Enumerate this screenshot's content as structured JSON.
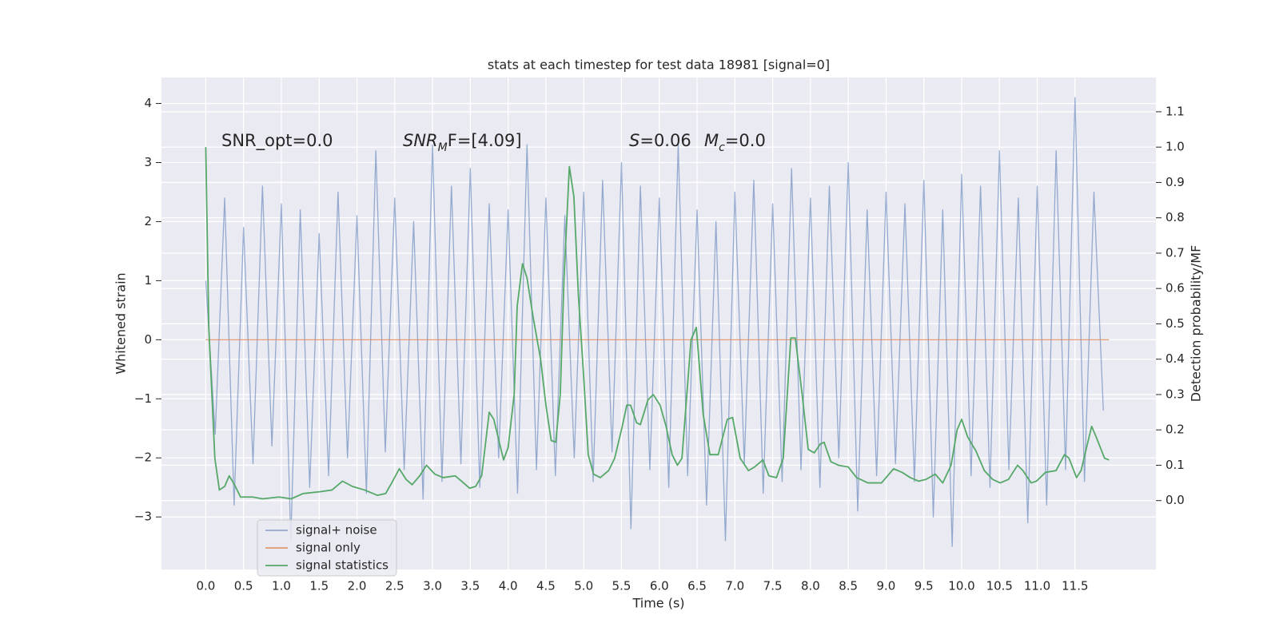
{
  "chart_data": {
    "type": "line",
    "title": "stats at each timestep for test data 18981 [signal=0]",
    "x_label": "Time (s)",
    "y_label": "Whitened strain",
    "y2_label": "Detection probability/MF",
    "annotations": [
      [
        {
          "text": "SNR_opt=0.0",
          "style": "normal"
        }
      ],
      [
        {
          "text": "SNR",
          "style": "italic"
        },
        {
          "text": "M",
          "style": "sub"
        },
        {
          "text": "F=[4.09]",
          "style": "normal"
        }
      ],
      [
        {
          "text": "S",
          "style": "italic"
        },
        {
          "text": "=0.06",
          "style": "normal"
        }
      ],
      [
        {
          "text": "M",
          "style": "italic"
        },
        {
          "text": "c",
          "style": "sub"
        },
        {
          "text": "=0.0",
          "style": "normal"
        }
      ]
    ],
    "xlim": [
      -0.586,
      12.57
    ],
    "ylim": [
      -3.89,
      4.44
    ],
    "y2lim": [
      -0.195,
      1.197
    ],
    "xticks": [
      {
        "value": 0,
        "label": "0.0"
      },
      0.5,
      {
        "value": 1,
        "label": "1.0"
      },
      1.5,
      {
        "value": 2,
        "label": "2.0"
      },
      2.5,
      {
        "value": 3,
        "label": "3.0"
      },
      3.5,
      {
        "value": 4,
        "label": "4.0"
      },
      4.5,
      {
        "value": 5,
        "label": "5.0"
      },
      5.5,
      {
        "value": 6,
        "label": "6.0"
      },
      6.5,
      {
        "value": 7,
        "label": "7.0"
      },
      7.5,
      {
        "value": 8,
        "label": "8.0"
      },
      8.5,
      {
        "value": 9,
        "label": "9.0"
      },
      9.5,
      {
        "value": 10,
        "label": "10.0"
      },
      10.5,
      {
        "value": 11,
        "label": "11.0"
      },
      11.5
    ],
    "yticks": [
      4,
      3,
      2,
      1,
      0,
      {
        "value": -1,
        "label": "−1"
      },
      {
        "value": -2,
        "label": "−2"
      },
      {
        "value": -3,
        "label": "−3"
      }
    ],
    "y2ticks": [
      {
        "value": 0,
        "label": "0.0"
      },
      0.1,
      0.2,
      0.3,
      0.4,
      0.5,
      0.6,
      0.7,
      0.8,
      0.9,
      {
        "value": 1,
        "label": "1.0"
      },
      1.1
    ],
    "grid": true,
    "legend": "lower left",
    "series": [
      {
        "name": "signal+ noise",
        "color": "#4c72b0",
        "opacity": 0.55,
        "axis": "y",
        "x": [
          0,
          0.125,
          0.25,
          0.375,
          0.5,
          0.625,
          0.75,
          0.875,
          1,
          1.125,
          1.25,
          1.375,
          1.5,
          1.625,
          1.75,
          1.875,
          2,
          2.125,
          2.25,
          2.375,
          2.5,
          2.625,
          2.75,
          2.875,
          3,
          3.125,
          3.25,
          3.375,
          3.5,
          3.625,
          3.75,
          3.875,
          4,
          4.125,
          4.25,
          4.375,
          4.5,
          4.625,
          4.75,
          4.875,
          5,
          5.125,
          5.25,
          5.375,
          5.5,
          5.625,
          5.75,
          5.875,
          6,
          6.125,
          6.25,
          6.375,
          6.5,
          6.625,
          6.75,
          6.875,
          7,
          7.125,
          7.25,
          7.375,
          7.5,
          7.625,
          7.75,
          7.875,
          8,
          8.125,
          8.25,
          8.375,
          8.5,
          8.625,
          8.75,
          8.875,
          9,
          9.125,
          9.25,
          9.375,
          9.5,
          9.625,
          9.75,
          9.875,
          10,
          10.125,
          10.25,
          10.375,
          10.5,
          10.625,
          10.75,
          10.875,
          11,
          11.125,
          11.25,
          11.375,
          11.5,
          11.625,
          11.75,
          11.875
        ],
        "values": [
          1.0,
          -1.6,
          2.4,
          -2.8,
          1.9,
          -2.1,
          2.6,
          -1.8,
          2.3,
          -3.4,
          2.2,
          -2.5,
          1.8,
          -2.3,
          2.5,
          -2.0,
          2.1,
          -2.6,
          3.2,
          -1.9,
          2.4,
          -2.2,
          2.0,
          -2.7,
          3.3,
          -2.4,
          2.6,
          -2.1,
          2.9,
          -2.5,
          2.3,
          -2.0,
          2.2,
          -2.6,
          3.3,
          -2.2,
          2.4,
          -2.3,
          2.1,
          -2.0,
          2.5,
          -2.4,
          2.7,
          -1.9,
          3.0,
          -3.2,
          2.6,
          -2.2,
          2.4,
          -2.5,
          3.3,
          -2.3,
          2.2,
          -2.8,
          2.0,
          -3.4,
          2.5,
          -2.1,
          2.7,
          -2.6,
          2.3,
          -2.4,
          2.9,
          -2.2,
          2.4,
          -2.5,
          2.6,
          -2.0,
          3.0,
          -2.9,
          2.2,
          -2.3,
          2.5,
          -2.1,
          2.3,
          -2.4,
          2.7,
          -3.0,
          2.2,
          -3.5,
          2.8,
          -2.3,
          2.6,
          -2.5,
          3.2,
          -2.2,
          2.4,
          -3.1,
          2.6,
          -2.8,
          3.2,
          -2.2,
          4.1,
          -2.4,
          2.5,
          -1.2
        ]
      },
      {
        "name": "signal only",
        "color": "#dd8452",
        "opacity": 0.8,
        "axis": "y",
        "x": [
          0,
          11.95
        ],
        "values": [
          0,
          0
        ]
      },
      {
        "name": "signal statistics",
        "color": "#55a868",
        "opacity": 1,
        "axis": "y2",
        "x": [
          0,
          0.04,
          0.12,
          0.18,
          0.25,
          0.31,
          0.38,
          0.46,
          0.62,
          0.75,
          0.97,
          1.13,
          1.29,
          1.51,
          1.67,
          1.81,
          1.94,
          2.1,
          2.27,
          2.38,
          2.46,
          2.56,
          2.65,
          2.73,
          2.83,
          2.92,
          3.03,
          3.14,
          3.3,
          3.41,
          3.49,
          3.57,
          3.65,
          3.75,
          3.81,
          3.94,
          4.0,
          4.08,
          4.12,
          4.19,
          4.25,
          4.33,
          4.43,
          4.5,
          4.57,
          4.63,
          4.69,
          4.74,
          4.81,
          4.87,
          4.93,
          5.0,
          5.06,
          5.13,
          5.22,
          5.33,
          5.41,
          5.51,
          5.57,
          5.62,
          5.7,
          5.75,
          5.85,
          5.92,
          6.01,
          6.09,
          6.17,
          6.24,
          6.3,
          6.42,
          6.49,
          6.58,
          6.67,
          6.78,
          6.9,
          6.97,
          7.07,
          7.18,
          7.26,
          7.37,
          7.45,
          7.55,
          7.64,
          7.74,
          7.8,
          7.89,
          7.97,
          8.05,
          8.13,
          8.18,
          8.27,
          8.37,
          8.5,
          8.61,
          8.76,
          8.94,
          9.1,
          9.21,
          9.32,
          9.43,
          9.53,
          9.65,
          9.75,
          9.86,
          9.94,
          10.0,
          10.08,
          10.19,
          10.3,
          10.41,
          10.51,
          10.62,
          10.74,
          10.81,
          10.92,
          10.99,
          11.11,
          11.25,
          11.36,
          11.42,
          11.52,
          11.58,
          11.72,
          11.78,
          11.89,
          11.95
        ],
        "values": [
          1.0,
          0.49,
          0.12,
          0.03,
          0.04,
          0.07,
          0.045,
          0.01,
          0.01,
          0.005,
          0.01,
          0.005,
          0.02,
          0.025,
          0.03,
          0.055,
          0.04,
          0.03,
          0.015,
          0.02,
          0.05,
          0.09,
          0.06,
          0.045,
          0.07,
          0.1,
          0.075,
          0.065,
          0.07,
          0.05,
          0.035,
          0.04,
          0.07,
          0.25,
          0.23,
          0.115,
          0.15,
          0.3,
          0.55,
          0.67,
          0.63,
          0.52,
          0.4,
          0.27,
          0.17,
          0.165,
          0.3,
          0.63,
          0.945,
          0.86,
          0.58,
          0.35,
          0.13,
          0.075,
          0.065,
          0.085,
          0.12,
          0.21,
          0.27,
          0.27,
          0.22,
          0.215,
          0.285,
          0.3,
          0.27,
          0.21,
          0.13,
          0.1,
          0.12,
          0.455,
          0.49,
          0.245,
          0.13,
          0.13,
          0.23,
          0.235,
          0.12,
          0.085,
          0.095,
          0.115,
          0.07,
          0.065,
          0.12,
          0.46,
          0.46,
          0.3,
          0.145,
          0.135,
          0.16,
          0.165,
          0.11,
          0.1,
          0.095,
          0.065,
          0.05,
          0.05,
          0.09,
          0.08,
          0.065,
          0.055,
          0.06,
          0.075,
          0.05,
          0.1,
          0.2,
          0.23,
          0.18,
          0.14,
          0.085,
          0.06,
          0.05,
          0.06,
          0.1,
          0.085,
          0.05,
          0.055,
          0.08,
          0.085,
          0.13,
          0.12,
          0.065,
          0.085,
          0.21,
          0.18,
          0.12,
          0.115
        ]
      }
    ]
  }
}
